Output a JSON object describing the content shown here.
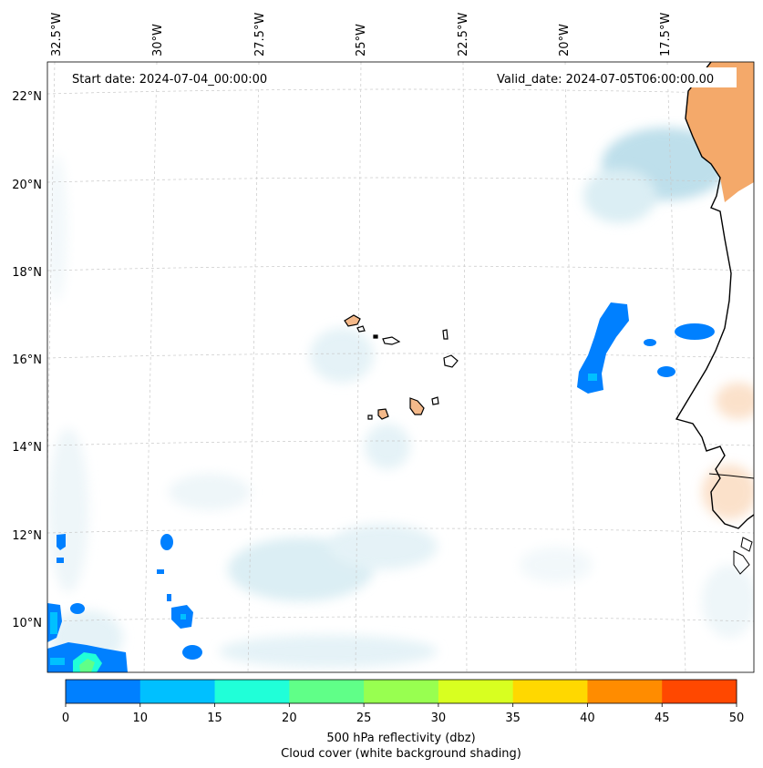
{
  "map": {
    "start_date_label": "Start date: 2024-07-04_00:00:00",
    "valid_date_label": "Valid_date: 2024-07-05T06:00:00.00",
    "longitude_labels": [
      "32.5°W",
      "30°W",
      "27.5°W",
      "25°W",
      "22.5°W",
      "20°W",
      "17.5°W"
    ],
    "latitude_labels": [
      "22°N",
      "20°N",
      "18°N",
      "16°N",
      "14°N",
      "12°N",
      "10°N"
    ]
  },
  "colorbar": {
    "title": "500 hPa reflectivity (dbz)",
    "subtitle": "Cloud cover (white background shading)",
    "ticks": [
      "0",
      "10",
      "15",
      "20",
      "25",
      "30",
      "35",
      "40",
      "45",
      "50"
    ],
    "colors": [
      "#0080ff",
      "#00c0ff",
      "#20ffd8",
      "#60ff88",
      "#98ff50",
      "#d8ff20",
      "#ffd800",
      "#ff8c00",
      "#ff4800"
    ]
  },
  "colors": {
    "land_fill": "#f4a96a",
    "coast_line": "#000000",
    "cloud_shade": "#cfe8f0",
    "echo_blue": "#0080ff"
  }
}
